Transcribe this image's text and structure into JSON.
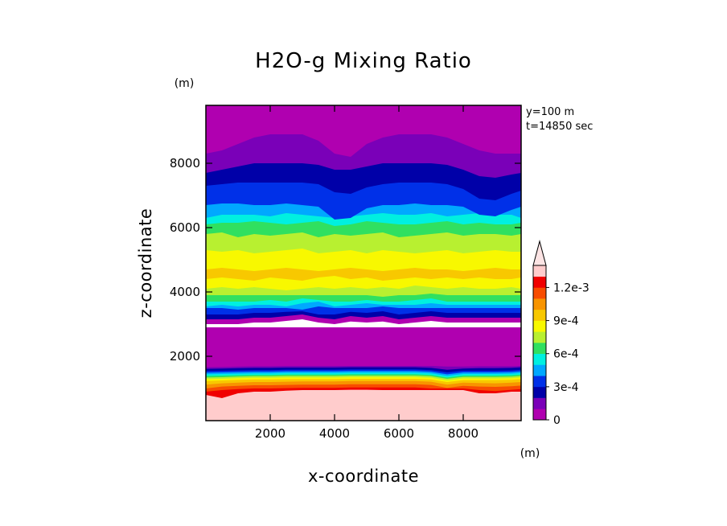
{
  "chart_data": {
    "type": "heatmap",
    "title": "H2O-g Mixing Ratio",
    "xlabel": "x-coordinate",
    "ylabel": "z-coordinate",
    "x_unit": "(m)",
    "y_unit": "(m)",
    "xlim": [
      0,
      9800
    ],
    "ylim": [
      0,
      9800
    ],
    "x_ticks": [
      2000,
      4000,
      6000,
      8000
    ],
    "y_ticks": [
      2000,
      4000,
      6000,
      8000
    ],
    "x_tick_labels": [
      "2000",
      "4000",
      "6000",
      "8000"
    ],
    "y_tick_labels": [
      "2000",
      "4000",
      "6000",
      "8000"
    ],
    "annotations": [
      "y=100 m",
      "t=14850 sec"
    ],
    "colorbar": {
      "min": 0,
      "max": 0.0013,
      "step": 0.0001,
      "extend": "max",
      "colors": [
        "#b000b0",
        "#7a00b8",
        "#0000a8",
        "#0030e8",
        "#00a8ff",
        "#00f0e0",
        "#30e060",
        "#b8f030",
        "#f8f800",
        "#f8c800",
        "#f89400",
        "#f84c00",
        "#f00000",
        "#ffcccc"
      ],
      "labels": [
        {
          "value": 0,
          "text": "0"
        },
        {
          "value": 0.0003,
          "text": "3e-4"
        },
        {
          "value": 0.0006,
          "text": "6e-4"
        },
        {
          "value": 0.0009,
          "text": "9e-4"
        },
        {
          "value": 0.0012,
          "text": "1.2e-3"
        }
      ]
    },
    "layers_x": [
      0,
      500,
      1000,
      1500,
      2000,
      2500,
      3000,
      3500,
      4000,
      4500,
      5000,
      5500,
      6000,
      6500,
      7000,
      7500,
      8000,
      8500,
      9000,
      9500,
      9800
    ],
    "layers": [
      {
        "level": 13,
        "z": [
          0,
          0,
          0,
          0,
          0,
          0,
          0,
          0,
          0,
          0,
          0,
          0,
          0,
          0,
          0,
          0,
          0,
          0,
          0,
          0,
          0
        ]
      },
      {
        "level": 12,
        "z": [
          800,
          700,
          850,
          900,
          900,
          930,
          950,
          950,
          950,
          960,
          960,
          950,
          950,
          950,
          950,
          950,
          950,
          850,
          850,
          900,
          900
        ]
      },
      {
        "level": 11,
        "z": [
          900,
          950,
          980,
          1000,
          1000,
          1010,
          1020,
          1020,
          1020,
          1030,
          1030,
          1030,
          1030,
          1030,
          1000,
          1000,
          1000,
          950,
          920,
          960,
          980
        ]
      },
      {
        "level": 10,
        "z": [
          1000,
          1060,
          1080,
          1100,
          1100,
          1110,
          1120,
          1120,
          1120,
          1130,
          1130,
          1130,
          1130,
          1130,
          1110,
          1020,
          1080,
          1060,
          1050,
          1070,
          1090
        ]
      },
      {
        "level": 9,
        "z": [
          1120,
          1160,
          1180,
          1200,
          1200,
          1210,
          1220,
          1220,
          1220,
          1230,
          1230,
          1230,
          1230,
          1230,
          1210,
          1120,
          1180,
          1170,
          1160,
          1180,
          1200
        ]
      },
      {
        "level": 8,
        "z": [
          1230,
          1250,
          1270,
          1280,
          1280,
          1290,
          1290,
          1290,
          1290,
          1300,
          1300,
          1300,
          1300,
          1300,
          1280,
          1200,
          1260,
          1260,
          1260,
          1270,
          1290
        ]
      },
      {
        "level": 7,
        "z": [
          1290,
          1300,
          1320,
          1330,
          1330,
          1340,
          1340,
          1340,
          1340,
          1350,
          1350,
          1350,
          1350,
          1350,
          1330,
          1250,
          1310,
          1310,
          1310,
          1320,
          1340
        ]
      },
      {
        "level": 6,
        "z": [
          1340,
          1350,
          1370,
          1380,
          1380,
          1390,
          1390,
          1390,
          1390,
          1400,
          1400,
          1400,
          1400,
          1400,
          1380,
          1300,
          1360,
          1360,
          1360,
          1370,
          1390
        ]
      },
      {
        "level": 5,
        "z": [
          1390,
          1400,
          1410,
          1420,
          1420,
          1430,
          1430,
          1430,
          1430,
          1440,
          1440,
          1440,
          1440,
          1440,
          1420,
          1340,
          1400,
          1400,
          1400,
          1410,
          1430
        ]
      },
      {
        "level": 4,
        "z": [
          1440,
          1450,
          1460,
          1470,
          1470,
          1480,
          1480,
          1480,
          1480,
          1490,
          1490,
          1490,
          1490,
          1490,
          1470,
          1390,
          1450,
          1450,
          1450,
          1460,
          1480
        ]
      },
      {
        "level": 3,
        "z": [
          1490,
          1500,
          1510,
          1520,
          1520,
          1530,
          1530,
          1530,
          1530,
          1540,
          1540,
          1540,
          1540,
          1540,
          1520,
          1440,
          1500,
          1500,
          1500,
          1510,
          1530
        ]
      },
      {
        "level": 2,
        "z": [
          1540,
          1550,
          1560,
          1570,
          1570,
          1580,
          1580,
          1580,
          1580,
          1590,
          1590,
          1590,
          1590,
          1590,
          1570,
          1500,
          1550,
          1550,
          1550,
          1560,
          1580
        ]
      },
      {
        "level": 1,
        "z": [
          1610,
          1620,
          1630,
          1640,
          1640,
          1650,
          1650,
          1650,
          1650,
          1660,
          1660,
          1660,
          1660,
          1660,
          1640,
          1580,
          1620,
          1630,
          1630,
          1640,
          1660
        ]
      },
      {
        "level": 0,
        "z": [
          1660,
          1670,
          1680,
          1690,
          1690,
          1700,
          1700,
          1700,
          1700,
          1700,
          1700,
          1700,
          1700,
          1700,
          1700,
          1680,
          1680,
          1690,
          1690,
          1690,
          1700
        ]
      },
      {
        "level": "none",
        "z": [
          2900,
          2900,
          2900,
          2900,
          2900,
          2900,
          2900,
          2900,
          2900,
          2900,
          2900,
          2900,
          2900,
          2900,
          2900,
          2900,
          2900,
          2900,
          2900,
          2900,
          2900
        ]
      },
      {
        "level": 0,
        "z": [
          3000,
          3000,
          3000,
          3050,
          3050,
          3100,
          3150,
          3050,
          3000,
          3080,
          3050,
          3080,
          3000,
          3050,
          3100,
          3050,
          3050,
          3050,
          3050,
          3050,
          3050
        ]
      },
      {
        "level": 2,
        "z": [
          3150,
          3150,
          3150,
          3200,
          3200,
          3250,
          3300,
          3200,
          3150,
          3250,
          3200,
          3250,
          3150,
          3200,
          3250,
          3200,
          3200,
          3200,
          3200,
          3200,
          3200
        ]
      },
      {
        "level": 3,
        "z": [
          3300,
          3300,
          3300,
          3350,
          3350,
          3380,
          3400,
          3300,
          3300,
          3380,
          3350,
          3400,
          3300,
          3350,
          3400,
          3350,
          3350,
          3350,
          3350,
          3350,
          3350
        ]
      },
      {
        "level": 4,
        "z": [
          3500,
          3500,
          3450,
          3500,
          3500,
          3500,
          3450,
          3550,
          3500,
          3500,
          3500,
          3550,
          3500,
          3500,
          3500,
          3500,
          3500,
          3500,
          3500,
          3500,
          3500
        ]
      },
      {
        "level": 5,
        "z": [
          3550,
          3600,
          3550,
          3600,
          3600,
          3550,
          3650,
          3700,
          3550,
          3600,
          3650,
          3600,
          3600,
          3600,
          3650,
          3600,
          3600,
          3600,
          3600,
          3600,
          3600
        ]
      },
      {
        "level": 6,
        "z": [
          3700,
          3700,
          3700,
          3700,
          3750,
          3700,
          3800,
          3750,
          3700,
          3700,
          3750,
          3700,
          3700,
          3750,
          3800,
          3700,
          3700,
          3700,
          3700,
          3700,
          3700
        ]
      },
      {
        "level": 7,
        "z": [
          3900,
          3900,
          3900,
          3900,
          3900,
          3900,
          3900,
          3900,
          3900,
          3900,
          3900,
          3850,
          3900,
          3900,
          3950,
          3900,
          3900,
          3900,
          3900,
          3900,
          3900
        ]
      },
      {
        "level": 8,
        "z": [
          4100,
          4150,
          4100,
          4150,
          4100,
          4050,
          4100,
          4150,
          4100,
          4150,
          4100,
          4150,
          4100,
          4200,
          4150,
          4100,
          4150,
          4100,
          4100,
          4150,
          4100
        ]
      },
      {
        "level": 9,
        "z": [
          4400,
          4450,
          4400,
          4350,
          4450,
          4400,
          4350,
          4450,
          4500,
          4400,
          4450,
          4350,
          4400,
          4450,
          4400,
          4450,
          4400,
          4450,
          4400,
          4400,
          4450
        ]
      },
      {
        "level": 8,
        "z": [
          4700,
          4750,
          4700,
          4650,
          4700,
          4750,
          4700,
          4650,
          4700,
          4750,
          4700,
          4650,
          4700,
          4750,
          4700,
          4700,
          4650,
          4700,
          4750,
          4700,
          4700
        ]
      },
      {
        "level": 7,
        "z": [
          5300,
          5250,
          5300,
          5200,
          5250,
          5300,
          5350,
          5200,
          5250,
          5300,
          5200,
          5300,
          5250,
          5200,
          5250,
          5300,
          5200,
          5250,
          5300,
          5250,
          5250
        ]
      },
      {
        "level": 6,
        "z": [
          5800,
          5850,
          5700,
          5800,
          5750,
          5800,
          5850,
          5700,
          5800,
          5750,
          5800,
          5850,
          5700,
          5750,
          5800,
          5850,
          5750,
          5800,
          5800,
          5750,
          5800
        ]
      },
      {
        "level": 5,
        "z": [
          6100,
          6150,
          6150,
          6200,
          6150,
          6100,
          6150,
          6200,
          6050,
          6100,
          6200,
          6150,
          6100,
          6100,
          6150,
          6200,
          6100,
          6150,
          6100,
          6100,
          6150
        ]
      },
      {
        "level": 4,
        "z": [
          6300,
          6400,
          6400,
          6400,
          6350,
          6450,
          6400,
          6350,
          6300,
          6350,
          6400,
          6450,
          6400,
          6400,
          6450,
          6350,
          6400,
          6450,
          6400,
          6400,
          6300
        ]
      },
      {
        "level": 3,
        "z": [
          6700,
          6750,
          6750,
          6700,
          6700,
          6750,
          6700,
          6650,
          6250,
          6300,
          6600,
          6700,
          6700,
          6750,
          6700,
          6700,
          6650,
          6400,
          6350,
          6550,
          6650
        ]
      },
      {
        "level": 2,
        "z": [
          7300,
          7350,
          7400,
          7400,
          7400,
          7400,
          7400,
          7350,
          7100,
          7050,
          7250,
          7350,
          7400,
          7400,
          7400,
          7350,
          7200,
          6900,
          6850,
          7050,
          7150
        ]
      },
      {
        "level": 1,
        "z": [
          7700,
          7800,
          7900,
          8000,
          8000,
          8000,
          8000,
          7950,
          7800,
          7800,
          7900,
          8000,
          8000,
          8000,
          8000,
          7950,
          7800,
          7600,
          7550,
          7650,
          7700
        ]
      },
      {
        "level": 0,
        "z": [
          8300,
          8400,
          8600,
          8800,
          8900,
          8900,
          8900,
          8700,
          8300,
          8200,
          8600,
          8800,
          8900,
          8900,
          8900,
          8800,
          8600,
          8400,
          8300,
          8300,
          8300
        ]
      }
    ]
  }
}
